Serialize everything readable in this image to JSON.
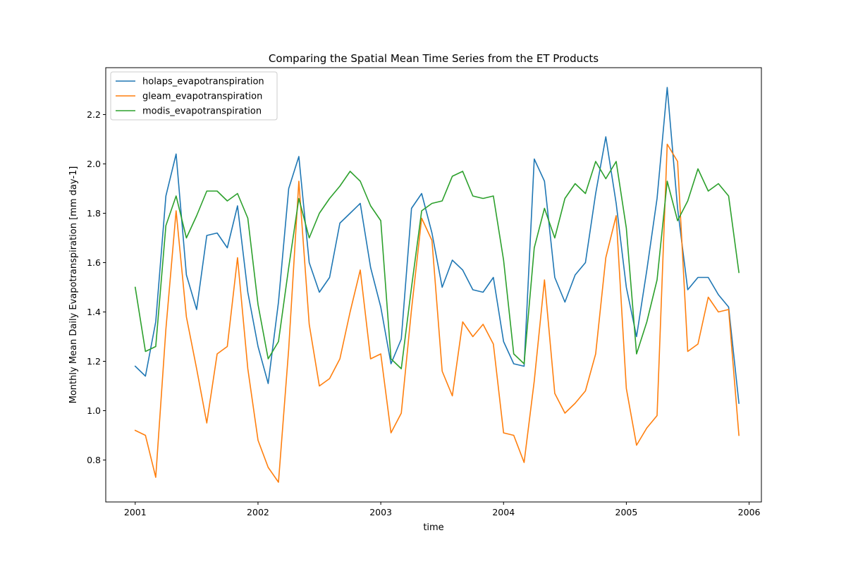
{
  "chart_data": {
    "type": "line",
    "title": "Comparing the Spatial Mean Time Series from the ET Products",
    "xlabel": "time",
    "ylabel": "Monthly Mean Daily Evapotranspiration [mm day-1]",
    "xlim": [
      2000.76,
      2006.1
    ],
    "ylim": [
      0.63,
      2.39
    ],
    "xticks": [
      2001,
      2002,
      2003,
      2004,
      2005,
      2006
    ],
    "xtick_labels": [
      "2001",
      "2002",
      "2003",
      "2004",
      "2005",
      "2006"
    ],
    "yticks": [
      0.8,
      1.0,
      1.2,
      1.4,
      1.6,
      1.8,
      2.0,
      2.2
    ],
    "ytick_labels": [
      "0.8",
      "1.0",
      "1.2",
      "1.4",
      "1.6",
      "1.8",
      "2.0",
      "2.2"
    ],
    "legend_position": "top-left",
    "x": [
      2001.0,
      2001.083,
      2001.167,
      2001.25,
      2001.333,
      2001.417,
      2001.5,
      2001.583,
      2001.667,
      2001.75,
      2001.833,
      2001.917,
      2002.0,
      2002.083,
      2002.167,
      2002.25,
      2002.333,
      2002.417,
      2002.5,
      2002.583,
      2002.667,
      2002.75,
      2002.833,
      2002.917,
      2003.0,
      2003.083,
      2003.167,
      2003.25,
      2003.333,
      2003.417,
      2003.5,
      2003.583,
      2003.667,
      2003.75,
      2003.833,
      2003.917,
      2004.0,
      2004.083,
      2004.167,
      2004.25,
      2004.333,
      2004.417,
      2004.5,
      2004.583,
      2004.667,
      2004.75,
      2004.833,
      2004.917,
      2005.0,
      2005.083,
      2005.167,
      2005.25,
      2005.333,
      2005.417,
      2005.5,
      2005.583,
      2005.667,
      2005.75,
      2005.833,
      2005.917
    ],
    "series": [
      {
        "name": "holaps_evapotranspiration",
        "color": "#1f77b4",
        "values": [
          1.18,
          1.14,
          1.36,
          1.87,
          2.04,
          1.55,
          1.41,
          1.71,
          1.72,
          1.66,
          1.83,
          1.48,
          1.26,
          1.11,
          1.44,
          1.9,
          2.03,
          1.6,
          1.48,
          1.54,
          1.76,
          1.8,
          1.84,
          1.58,
          1.42,
          1.19,
          1.29,
          1.82,
          1.88,
          1.72,
          1.5,
          1.61,
          1.57,
          1.49,
          1.48,
          1.54,
          1.28,
          1.19,
          1.18,
          2.02,
          1.93,
          1.54,
          1.44,
          1.55,
          1.6,
          1.88,
          2.11,
          1.84,
          1.5,
          1.3,
          1.57,
          1.86,
          2.31,
          1.82,
          1.49,
          1.54,
          1.54,
          1.47,
          1.42,
          1.03
        ]
      },
      {
        "name": "gleam_evapotranspiration",
        "color": "#ff7f0e",
        "values": [
          0.92,
          0.9,
          0.73,
          1.33,
          1.81,
          1.38,
          1.17,
          0.95,
          1.23,
          1.26,
          1.62,
          1.17,
          0.88,
          0.77,
          0.71,
          1.25,
          1.93,
          1.35,
          1.1,
          1.13,
          1.21,
          1.4,
          1.57,
          1.21,
          1.23,
          0.91,
          0.99,
          1.41,
          1.78,
          1.69,
          1.16,
          1.06,
          1.36,
          1.3,
          1.35,
          1.27,
          0.91,
          0.9,
          0.79,
          1.12,
          1.53,
          1.07,
          0.99,
          1.03,
          1.08,
          1.23,
          1.62,
          1.79,
          1.09,
          0.86,
          0.93,
          0.98,
          2.08,
          2.01,
          1.24,
          1.27,
          1.46,
          1.4,
          1.41,
          0.9
        ]
      },
      {
        "name": "modis_evapotranspiration",
        "color": "#2ca02c",
        "values": [
          1.5,
          1.24,
          1.26,
          1.75,
          1.87,
          1.7,
          1.79,
          1.89,
          1.89,
          1.85,
          1.88,
          1.78,
          1.43,
          1.21,
          1.28,
          1.58,
          1.86,
          1.7,
          1.8,
          1.86,
          1.91,
          1.97,
          1.93,
          1.83,
          1.77,
          1.21,
          1.17,
          1.5,
          1.81,
          1.84,
          1.85,
          1.95,
          1.97,
          1.87,
          1.86,
          1.87,
          1.61,
          1.23,
          1.19,
          1.66,
          1.82,
          1.7,
          1.86,
          1.92,
          1.88,
          2.01,
          1.94,
          2.01,
          1.74,
          1.23,
          1.36,
          1.53,
          1.93,
          1.77,
          1.85,
          1.98,
          1.89,
          1.92,
          1.87,
          1.56
        ]
      }
    ]
  }
}
